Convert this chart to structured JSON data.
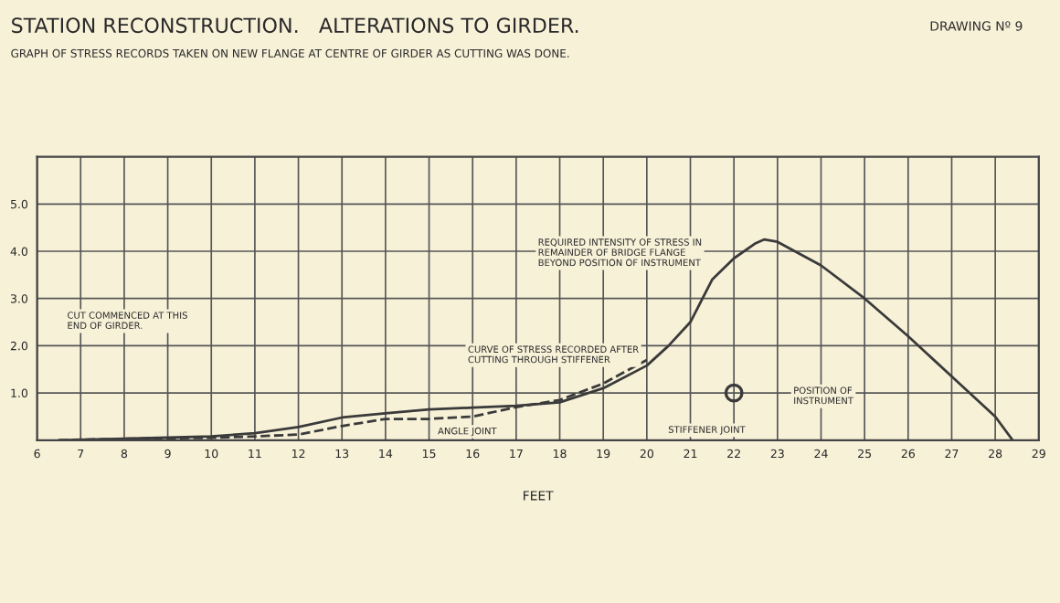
{
  "chart_data": {
    "type": "line",
    "title": "STATION RECONSTRUCTION.   ALTERATIONS TO GIRDER.",
    "subtitle": "GRAPH OF STRESS RECORDS TAKEN ON NEW FLANGE AT CENTRE OF GIRDER AS CUTTING WAS DONE.",
    "xlabel": "FEET",
    "xlim": [
      6,
      29
    ],
    "ylim": [
      0,
      6
    ],
    "xticks": [
      6,
      7,
      8,
      9,
      10,
      11,
      12,
      13,
      14,
      15,
      16,
      17,
      18,
      19,
      20,
      21,
      22,
      23,
      24,
      25,
      26,
      27,
      28,
      29
    ],
    "yticks": [
      {
        "value": 1,
        "label": "1.0"
      },
      {
        "value": 2,
        "label": "2.0"
      },
      {
        "value": 3,
        "label": "3.0"
      },
      {
        "value": 4,
        "label": "4.0"
      },
      {
        "value": 5,
        "label": "5.0"
      }
    ],
    "grid": true,
    "series": [
      {
        "color": "#3a3a3a",
        "line_style": "solid",
        "x": [
          6.5,
          8,
          10,
          11,
          12,
          13,
          14,
          15,
          16,
          17,
          18,
          19,
          20,
          20.5,
          21,
          21.5,
          22,
          22.5,
          22.7,
          23,
          24,
          25,
          26,
          27,
          28,
          28.4
        ],
        "values": [
          0.0,
          0.03,
          0.08,
          0.15,
          0.28,
          0.48,
          0.57,
          0.65,
          0.69,
          0.73,
          0.8,
          1.1,
          1.58,
          2.0,
          2.5,
          3.4,
          3.85,
          4.17,
          4.25,
          4.2,
          3.7,
          3.0,
          2.2,
          1.35,
          0.5,
          0.0
        ]
      },
      {
        "color": "#3a3a3a",
        "line_style": "dashed",
        "x": [
          6.5,
          8,
          10,
          11,
          12,
          13,
          14,
          15,
          16,
          17,
          18,
          19,
          20
        ],
        "values": [
          0.0,
          0.03,
          0.05,
          0.08,
          0.12,
          0.3,
          0.45,
          0.45,
          0.5,
          0.7,
          0.85,
          1.2,
          1.7
        ]
      },
      {
        "type": "scatter",
        "marker": "circle",
        "color": "#3a3a3a",
        "x": [
          22
        ],
        "values": [
          1.0
        ]
      }
    ],
    "annotations": [
      "DRAWING Nº 9",
      "CUT COMMENCED AT THIS\nEND OF GIRDER.",
      "CURVE OF STRESS RECORDED AFTER\nCUTTING THROUGH STIFFENER",
      "REQUIRED INTENSITY OF STRESS IN\nREMAINDER OF BRIDGE FLANGE\nBEYOND POSITION OF INSTRUMENT",
      "POSITION OF\nINSTRUMENT",
      "STIFFENER JOINT",
      "ANGLE JOINT"
    ]
  }
}
